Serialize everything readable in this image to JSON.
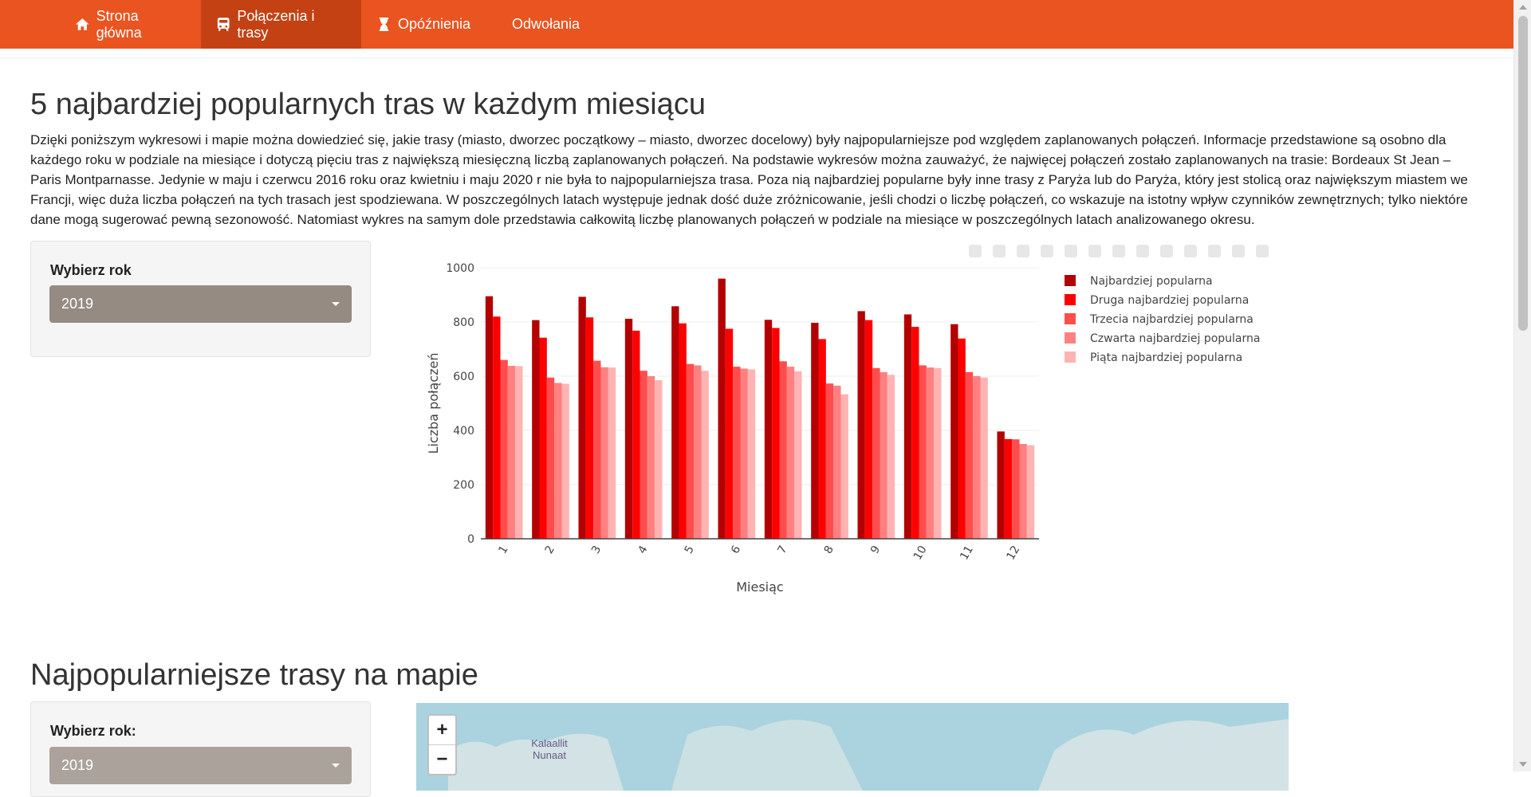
{
  "nav": {
    "items": [
      {
        "label": "Strona główna",
        "icon": "home-icon"
      },
      {
        "label": "Połączenia i trasy",
        "icon": "bus-icon"
      },
      {
        "label": "Opóźnienia",
        "icon": "hourglass-icon"
      },
      {
        "label": "Odwołania",
        "icon": "ban-icon"
      }
    ],
    "active_index": 1,
    "color": "#e95420",
    "active_color": "#c34113"
  },
  "section1": {
    "title": "5 najbardziej popularnych tras w każdym miesiącu",
    "description": "Dzięki poniższym wykresowi i mapie można dowiedzieć się, jakie trasy (miasto, dworzec początkowy – miasto, dworzec docelowy) były najpopularniejsze pod względem zaplanowanych połączeń. Informacje przedstawione są osobno dla każdego roku w podziale na miesiące i dotyczą pięciu tras z największą miesięczną liczbą zaplanowanych połączeń. Na podstawie wykresów można zauważyć, że najwięcej połączeń zostało zaplanowanych na trasie: Bordeaux St Jean – Paris Montparnasse. Jedynie w maju i czerwcu 2016 roku oraz kwietniu i maju 2020 r nie była to najpopularniejsza trasa. Poza nią najbardziej popularne były inne trasy z Paryża lub do Paryża, który jest stolicą oraz największym miastem we Francji, więc duża liczba połączeń na tych trasach jest spodziewana. W poszczególnych latach występuje jednak dość duże zróżnicowanie, jeśli chodzi o liczbę połączeń, co wskazuje na istotny wpływ czynników zewnętrznych; tylko niektóre dane mogą sugerować pewną sezonowość. Natomiast wykres na samym dole przedstawia całkowitą liczbę planowanych połączeń w podziale na miesiące w poszczególnych latach analizowanego okresu.",
    "year_label": "Wybierz rok",
    "year_value": "2019"
  },
  "chart_data": {
    "type": "bar",
    "categories": [
      "1",
      "2",
      "3",
      "4",
      "5",
      "6",
      "7",
      "8",
      "9",
      "10",
      "11",
      "12"
    ],
    "xlabel": "Miesiąc",
    "ylabel": "Liczba połączeń",
    "ylim": [
      0,
      1000
    ],
    "yticks": [
      "0",
      "200",
      "400",
      "600",
      "800",
      "1000"
    ],
    "grid": true,
    "legend_position": "right",
    "series": [
      {
        "name": "Najbardziej popularna",
        "color": "#b30000",
        "values": [
          895,
          807,
          893,
          812,
          858,
          960,
          808,
          797,
          840,
          828,
          792,
          396
        ]
      },
      {
        "name": "Druga najbardziej popularna",
        "color": "#ff0000",
        "values": [
          820,
          742,
          817,
          768,
          795,
          775,
          778,
          737,
          807,
          782,
          739,
          368
        ]
      },
      {
        "name": "Trzecia najbardziej popularna",
        "color": "#ff4d4d",
        "values": [
          660,
          595,
          657,
          620,
          645,
          635,
          655,
          573,
          630,
          640,
          615,
          367
        ]
      },
      {
        "name": "Czwarta najbardziej popularna",
        "color": "#ff8080",
        "values": [
          638,
          575,
          633,
          600,
          640,
          628,
          635,
          565,
          615,
          632,
          600,
          350
        ]
      },
      {
        "name": "Piąta najbardziej popularna",
        "color": "#ffb3b3",
        "values": [
          637,
          572,
          632,
          585,
          620,
          625,
          618,
          533,
          605,
          630,
          595,
          345
        ]
      }
    ]
  },
  "section2": {
    "title": "Najpopularniejsze trasy na mapie",
    "year_label": "Wybierz rok:",
    "year_value": "2019",
    "map_label": "Kalaallit Nunaat",
    "zoom_in": "+",
    "zoom_out": "−"
  }
}
